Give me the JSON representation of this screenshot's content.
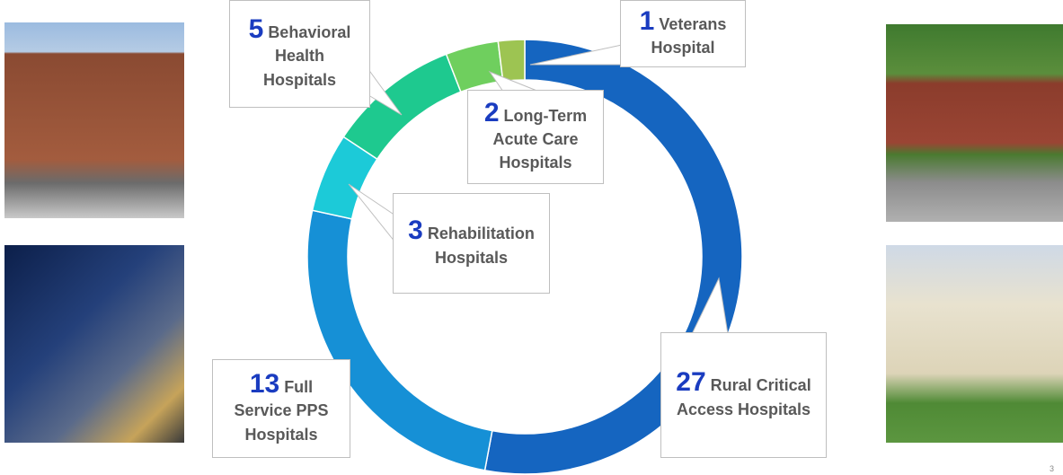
{
  "chart_data": {
    "type": "donut",
    "categories": [
      "Rural Critical Access Hospitals",
      "Full Service PPS Hospitals",
      "Rehabilitation Hospitals",
      "Behavioral Health Hospitals",
      "Long-Term Acute Care Hospitals",
      "Veterans Hospital"
    ],
    "values": [
      27,
      13,
      3,
      5,
      2,
      1
    ],
    "colors": [
      "#1565c0",
      "#1690d6",
      "#1ccad8",
      "#1ec98f",
      "#6fcf5e",
      "#9dc452"
    ]
  },
  "slide_number": "3"
}
